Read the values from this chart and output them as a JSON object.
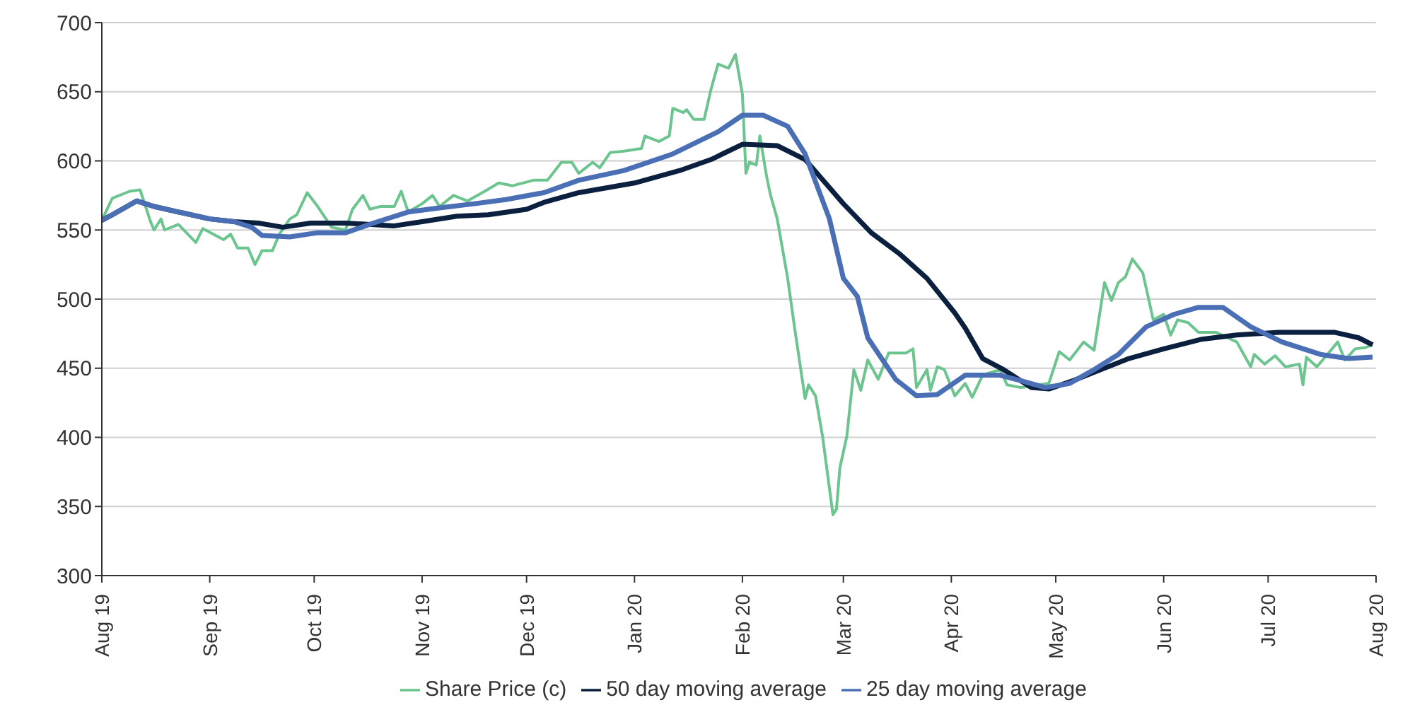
{
  "chart_data": {
    "type": "line",
    "xlim": [
      "2019-08-01",
      "2020-08-01"
    ],
    "xticks": [
      {
        "value": "2019-08-01",
        "label": "Aug 19"
      },
      {
        "value": "2019-09-01",
        "label": "Sep 19"
      },
      {
        "value": "2019-10-01",
        "label": "Oct 19"
      },
      {
        "value": "2019-11-01",
        "label": "Nov 19"
      },
      {
        "value": "2019-12-01",
        "label": "Dec 19"
      },
      {
        "value": "2020-01-01",
        "label": "Jan 20"
      },
      {
        "value": "2020-02-01",
        "label": "Feb 20"
      },
      {
        "value": "2020-03-01",
        "label": "Mar 20"
      },
      {
        "value": "2020-04-01",
        "label": "Apr 20"
      },
      {
        "value": "2020-05-01",
        "label": "May 20"
      },
      {
        "value": "2020-06-01",
        "label": "Jun 20"
      },
      {
        "value": "2020-07-01",
        "label": "Jul 20"
      },
      {
        "value": "2020-08-01",
        "label": "Aug 20"
      }
    ],
    "ylim": [
      300,
      700
    ],
    "yticks": [
      300,
      350,
      400,
      450,
      500,
      550,
      600,
      650,
      700
    ],
    "grid": "y",
    "legend": "bottom",
    "marker": "none",
    "line_style": "solid",
    "series": [
      {
        "name": "Share Price (c)",
        "color": "#6cc48f",
        "x": [
          "2019-08-01",
          "2019-08-04",
          "2019-08-09",
          "2019-08-12",
          "2019-08-15",
          "2019-08-16",
          "2019-08-18",
          "2019-08-19",
          "2019-08-23",
          "2019-08-28",
          "2019-08-30",
          "2019-09-05",
          "2019-09-07",
          "2019-09-09",
          "2019-09-12",
          "2019-09-14",
          "2019-09-16",
          "2019-09-19",
          "2019-09-21",
          "2019-09-24",
          "2019-09-26",
          "2019-09-29",
          "2019-10-02",
          "2019-10-06",
          "2019-10-10",
          "2019-10-12",
          "2019-10-15",
          "2019-10-17",
          "2019-10-20",
          "2019-10-24",
          "2019-10-26",
          "2019-10-28",
          "2019-11-01",
          "2019-11-04",
          "2019-11-06",
          "2019-11-10",
          "2019-11-14",
          "2019-11-19",
          "2019-11-23",
          "2019-11-27",
          "2019-12-03",
          "2019-12-07",
          "2019-12-11",
          "2019-12-14",
          "2019-12-16",
          "2019-12-20",
          "2019-12-22",
          "2019-12-25",
          "2019-12-29",
          "2020-01-03",
          "2020-01-04",
          "2020-01-08",
          "2020-01-11",
          "2020-01-12",
          "2020-01-15",
          "2020-01-16",
          "2020-01-18",
          "2020-01-21",
          "2020-01-23",
          "2020-01-25",
          "2020-01-28",
          "2020-01-30",
          "2020-02-01",
          "2020-02-02",
          "2020-02-03",
          "2020-02-05",
          "2020-02-06",
          "2020-02-08",
          "2020-02-09",
          "2020-02-11",
          "2020-02-14",
          "2020-02-16",
          "2020-02-19",
          "2020-02-20",
          "2020-02-22",
          "2020-02-24",
          "2020-02-27",
          "2020-02-28",
          "2020-02-29",
          "2020-03-02",
          "2020-03-04",
          "2020-03-06",
          "2020-03-08",
          "2020-03-11",
          "2020-03-14",
          "2020-03-19",
          "2020-03-21",
          "2020-03-22",
          "2020-03-25",
          "2020-03-26",
          "2020-03-28",
          "2020-03-30",
          "2020-04-02",
          "2020-04-05",
          "2020-04-07",
          "2020-04-10",
          "2020-04-15",
          "2020-04-17",
          "2020-04-21",
          "2020-04-26",
          "2020-04-29",
          "2020-05-02",
          "2020-05-05",
          "2020-05-09",
          "2020-05-12",
          "2020-05-15",
          "2020-05-17",
          "2020-05-19",
          "2020-05-21",
          "2020-05-23",
          "2020-05-26",
          "2020-05-29",
          "2020-06-01",
          "2020-06-03",
          "2020-06-05",
          "2020-06-08",
          "2020-06-11",
          "2020-06-16",
          "2020-06-22",
          "2020-06-26",
          "2020-06-27",
          "2020-06-30",
          "2020-07-03",
          "2020-07-06",
          "2020-07-10",
          "2020-07-11",
          "2020-07-12",
          "2020-07-15",
          "2020-07-18",
          "2020-07-21",
          "2020-07-23",
          "2020-07-26",
          "2020-07-29",
          "2020-07-31"
        ],
        "values": [
          557,
          573,
          578,
          579,
          556,
          550,
          558,
          550,
          554,
          541,
          551,
          543,
          547,
          537,
          537,
          525,
          535,
          535,
          547,
          558,
          561,
          577,
          567,
          552,
          550,
          565,
          575,
          565,
          567,
          567,
          578,
          563,
          569,
          575,
          567,
          575,
          571,
          578,
          584,
          582,
          586,
          586,
          599,
          599,
          591,
          599,
          595,
          606,
          607,
          609,
          618,
          614,
          618,
          638,
          635,
          637,
          630,
          630,
          652,
          670,
          667,
          677,
          648,
          591,
          599,
          597,
          618,
          588,
          576,
          558,
          515,
          479,
          428,
          438,
          430,
          401,
          344,
          348,
          378,
          401,
          449,
          434,
          456,
          442,
          461,
          461,
          464,
          436,
          449,
          434,
          451,
          449,
          430,
          439,
          429,
          445,
          449,
          438,
          436,
          438,
          439,
          462,
          456,
          469,
          463,
          512,
          499,
          512,
          516,
          529,
          519,
          485,
          489,
          474,
          485,
          483,
          476,
          476,
          469,
          451,
          460,
          453,
          459,
          451,
          453,
          438,
          458,
          451,
          460,
          469,
          456,
          464,
          465,
          467
        ]
      },
      {
        "name": "50 day moving average",
        "color": "#0b1f3f",
        "x": [
          "2019-08-01",
          "2019-08-04",
          "2019-08-11",
          "2019-08-16",
          "2019-08-23",
          "2019-09-01",
          "2019-09-08",
          "2019-09-15",
          "2019-09-22",
          "2019-09-30",
          "2019-10-10",
          "2019-10-24",
          "2019-11-01",
          "2019-11-11",
          "2019-11-20",
          "2019-12-01",
          "2019-12-06",
          "2019-12-16",
          "2020-01-01",
          "2020-01-14",
          "2020-01-23",
          "2020-02-01",
          "2020-02-11",
          "2020-02-19",
          "2020-03-01",
          "2020-03-09",
          "2020-03-17",
          "2020-03-25",
          "2020-04-02",
          "2020-04-05",
          "2020-04-10",
          "2020-04-16",
          "2020-04-24",
          "2020-04-29",
          "2020-05-06",
          "2020-05-12",
          "2020-05-22",
          "2020-06-01",
          "2020-06-12",
          "2020-06-22",
          "2020-07-04",
          "2020-07-20",
          "2020-07-27",
          "2020-07-31"
        ],
        "values": [
          557,
          561,
          571,
          567,
          563,
          558,
          556,
          555,
          552,
          555,
          555,
          553,
          556,
          560,
          561,
          565,
          570,
          577,
          584,
          593,
          601,
          612,
          611,
          601,
          569,
          548,
          533,
          515,
          490,
          479,
          457,
          449,
          436,
          435,
          441,
          447,
          457,
          464,
          471,
          474,
          476,
          476,
          472,
          467
        ]
      },
      {
        "name": "25 day moving average",
        "color": "#4a6fb5",
        "x": [
          "2019-08-01",
          "2019-08-04",
          "2019-08-11",
          "2019-08-16",
          "2019-08-23",
          "2019-09-01",
          "2019-09-08",
          "2019-09-13",
          "2019-09-16",
          "2019-09-24",
          "2019-10-02",
          "2019-10-10",
          "2019-10-18",
          "2019-10-28",
          "2019-11-06",
          "2019-11-16",
          "2019-11-25",
          "2019-12-06",
          "2019-12-16",
          "2019-12-29",
          "2020-01-12",
          "2020-01-25",
          "2020-02-01",
          "2020-02-07",
          "2020-02-14",
          "2020-02-19",
          "2020-02-26",
          "2020-03-01",
          "2020-03-05",
          "2020-03-08",
          "2020-03-16",
          "2020-03-22",
          "2020-03-28",
          "2020-04-05",
          "2020-04-15",
          "2020-04-21",
          "2020-04-28",
          "2020-05-05",
          "2020-05-12",
          "2020-05-19",
          "2020-05-27",
          "2020-06-04",
          "2020-06-11",
          "2020-06-18",
          "2020-06-26",
          "2020-07-05",
          "2020-07-16",
          "2020-07-24",
          "2020-07-31"
        ],
        "values": [
          557,
          561,
          571,
          567,
          563,
          558,
          556,
          552,
          546,
          545,
          548,
          548,
          555,
          563,
          566,
          569,
          572,
          577,
          586,
          593,
          605,
          621,
          633,
          633,
          625,
          605,
          558,
          515,
          502,
          472,
          442,
          430,
          431,
          445,
          445,
          441,
          436,
          439,
          449,
          460,
          480,
          489,
          494,
          494,
          480,
          469,
          460,
          457,
          458
        ]
      }
    ]
  }
}
